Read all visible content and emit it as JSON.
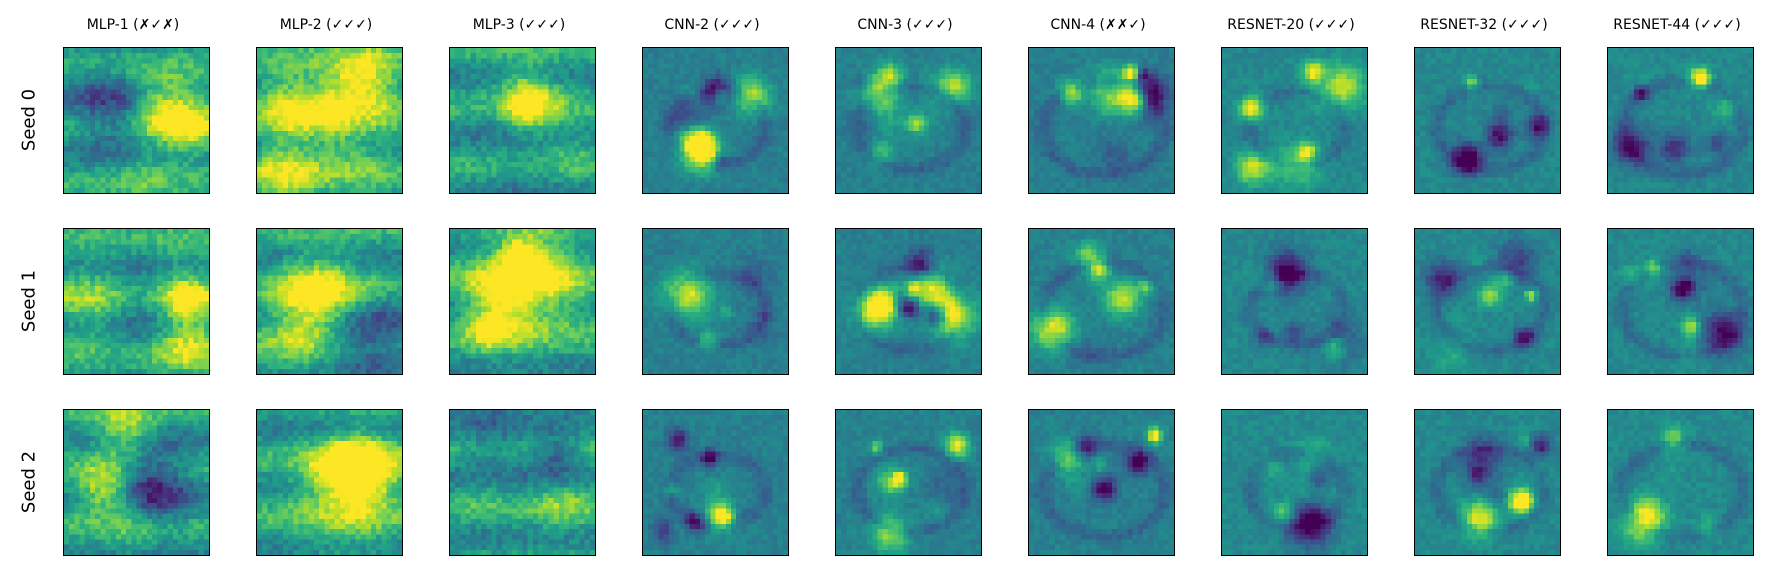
{
  "columns": [
    "MLP-1 (✗✓✗)",
    "MLP-2 (✓✓✓)",
    "MLP-3 (✓✓✓)",
    "CNN-2 (✓✓✓)",
    "CNN-3 (✓✓✓)",
    "CNN-4 (✗✗✓)",
    "RESNET-20 (✓✓✓)",
    "RESNET-32 (✓✓✓)",
    "RESNET-44 (✓✓✓)"
  ],
  "rows": [
    "Seed 0",
    "Seed 1",
    "Seed 2"
  ],
  "colormap": "viridis"
}
